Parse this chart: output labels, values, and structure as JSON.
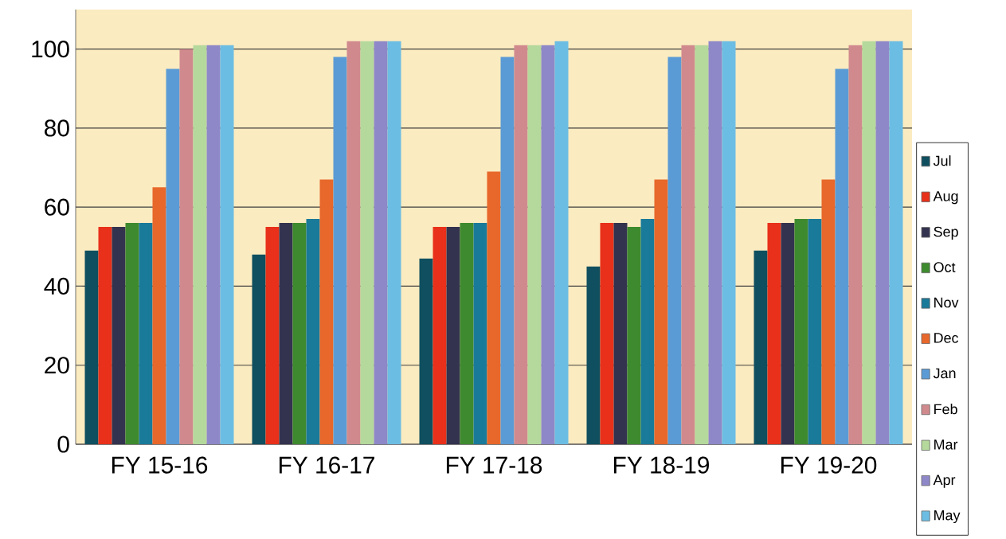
{
  "chart_data": {
    "type": "bar",
    "categories": [
      "FY 15-16",
      "FY 16-17",
      "FY 17-18",
      "FY 18-19",
      "FY 19-20"
    ],
    "series": [
      {
        "name": "Jul",
        "color": "#0f4f5f",
        "values": [
          49,
          48,
          47,
          45,
          49
        ]
      },
      {
        "name": "Aug",
        "color": "#e8301a",
        "values": [
          55,
          55,
          55,
          56,
          56
        ]
      },
      {
        "name": "Sep",
        "color": "#33334f",
        "values": [
          55,
          56,
          55,
          56,
          56
        ]
      },
      {
        "name": "Oct",
        "color": "#3e8a2e",
        "values": [
          56,
          56,
          56,
          55,
          57
        ]
      },
      {
        "name": "Nov",
        "color": "#1a7a99",
        "values": [
          56,
          57,
          56,
          57,
          57
        ]
      },
      {
        "name": "Dec",
        "color": "#e8672a",
        "values": [
          65,
          67,
          69,
          67,
          67
        ]
      },
      {
        "name": "Jan",
        "color": "#5b9bd5",
        "values": [
          95,
          98,
          98,
          98,
          95
        ]
      },
      {
        "name": "Feb",
        "color": "#d08a8e",
        "values": [
          100,
          102,
          101,
          101,
          101
        ]
      },
      {
        "name": "Mar",
        "color": "#b5d99c",
        "values": [
          101,
          102,
          101,
          101,
          102
        ]
      },
      {
        "name": "Apr",
        "color": "#8e88c8",
        "values": [
          101,
          102,
          101,
          102,
          102
        ]
      },
      {
        "name": "May",
        "color": "#6cbde3",
        "values": [
          101,
          102,
          102,
          102,
          102
        ]
      }
    ],
    "ylim": [
      0,
      110
    ],
    "yticks": [
      0,
      20,
      40,
      60,
      80,
      100
    ],
    "grid": "y",
    "legend": "right"
  }
}
